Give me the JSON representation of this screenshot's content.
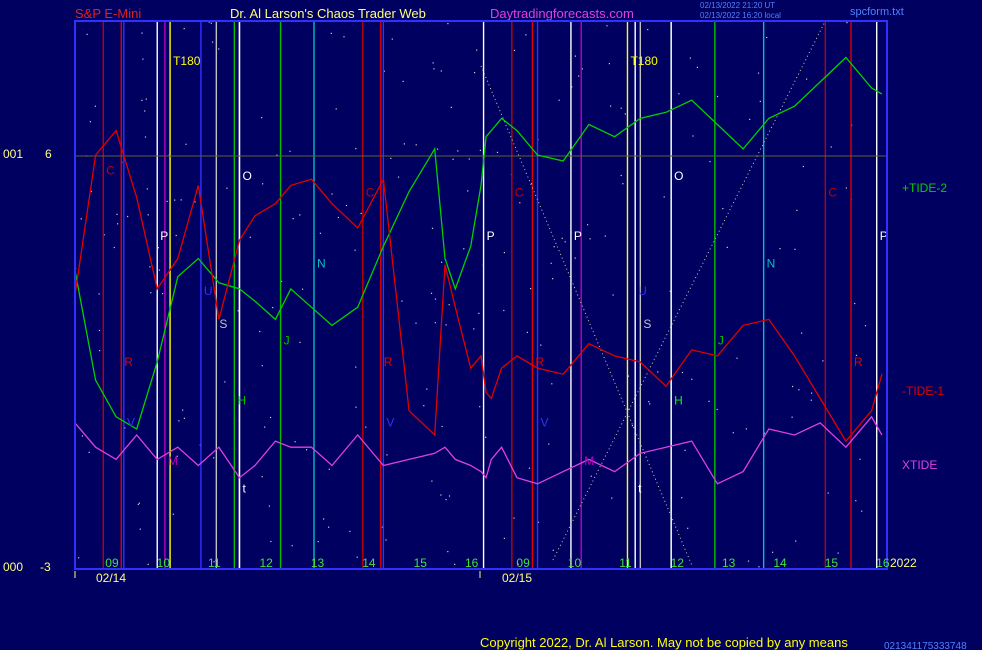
{
  "header": {
    "symbol": "S&P E-Mini",
    "title": "Dr. Al Larson's Chaos Trader Web",
    "site": "Daytradingforecasts.com",
    "stamp1": "02/13/2022 21:20 UT",
    "stamp2": "02/13/2022 16:20 local",
    "file": "spcform.txt"
  },
  "colors": {
    "background": "#000060",
    "frame": "#3030ff",
    "tide2": "#00d000",
    "tide1": "#e00000",
    "xtide": "#e040e0",
    "symbol": "#e02020",
    "title": "#ffff80",
    "site": "#e040e0",
    "copyright": "#ffff00",
    "date_labels": "#ffff80",
    "hour_labels": "#40e040"
  },
  "axis_left": {
    "top_code": "001",
    "top_value": "6",
    "bottom_code": "000",
    "bottom_value": "-3"
  },
  "series_labels": {
    "tide2": "+TIDE-2",
    "tide1": "-TIDE-1",
    "xtide": "XTIDE"
  },
  "year": "2022",
  "dates": [
    "02/14",
    "02/15"
  ],
  "hour_ticks": [
    "09",
    "10",
    "11",
    "12",
    "13",
    "14",
    "15",
    "16",
    "09",
    "10",
    "11",
    "12",
    "13",
    "14",
    "15",
    "16"
  ],
  "copyright": "Copyright 2022, Dr. Al Larson. May not be copied by any means",
  "bottom_right_id": "021341175333748",
  "chart_data": {
    "type": "line",
    "x_range": [
      "02/14 08:30",
      "02/15 16:15"
    ],
    "ylim": [
      -3,
      6
    ],
    "reference_line": 6,
    "series": [
      {
        "name": "+TIDE-2",
        "x_hours": [
          0,
          0.4,
          0.8,
          1.2,
          1.6,
          2.0,
          2.4,
          2.8,
          3.2,
          3.5,
          3.9,
          4.2,
          4.6,
          5.0,
          5.5,
          6.0,
          6.5,
          7.0,
          7.2,
          7.4,
          7.7,
          7.9,
          8.0,
          8.1,
          8.3,
          8.6,
          9.0,
          9.5,
          10.0,
          10.5,
          11.0,
          11.5,
          12.0,
          12.5,
          13.0,
          13.5,
          14.0,
          14.5,
          15.0,
          15.5,
          15.7
        ],
        "values": [
          1.9,
          0.1,
          -0.5,
          -0.7,
          0.4,
          1.8,
          2.1,
          1.7,
          1.6,
          1.4,
          1.1,
          1.6,
          1.3,
          1.0,
          1.3,
          2.3,
          3.2,
          3.9,
          2.1,
          1.6,
          2.3,
          3.3,
          4.1,
          4.2,
          4.4,
          4.2,
          3.8,
          3.7,
          4.3,
          4.1,
          4.4,
          4.5,
          4.7,
          4.3,
          3.9,
          4.4,
          4.6,
          5.0,
          5.4,
          4.9,
          4.8
        ]
      },
      {
        "name": "-TIDE-1",
        "x_hours": [
          0,
          0.4,
          0.8,
          1.2,
          1.6,
          2.0,
          2.4,
          2.8,
          3.2,
          3.5,
          3.9,
          4.2,
          4.6,
          5.0,
          5.5,
          6.0,
          6.5,
          7.0,
          7.2,
          7.4,
          7.7,
          7.9,
          8.0,
          8.1,
          8.3,
          8.6,
          9.0,
          9.5,
          10.0,
          10.5,
          11.0,
          11.5,
          12.0,
          12.5,
          13.0,
          13.5,
          14.0,
          14.5,
          15.0,
          15.5,
          15.7
        ],
        "values": [
          1.5,
          3.8,
          4.2,
          3.1,
          1.6,
          2.1,
          3.3,
          1.1,
          2.4,
          2.8,
          3.0,
          3.3,
          3.4,
          3.0,
          2.6,
          3.4,
          -0.4,
          -0.8,
          2.0,
          1.3,
          0.3,
          0.5,
          -0.1,
          -0.2,
          0.3,
          0.5,
          0.3,
          0.2,
          0.7,
          0.5,
          0.4,
          0.0,
          0.6,
          0.5,
          1.0,
          1.1,
          0.5,
          -0.2,
          -0.9,
          -0.4,
          0.2
        ]
      },
      {
        "name": "XTIDE",
        "x_hours": [
          0,
          0.4,
          0.8,
          1.2,
          1.6,
          2.0,
          2.4,
          2.8,
          3.2,
          3.5,
          3.9,
          4.2,
          4.6,
          5.0,
          5.5,
          6.0,
          6.5,
          7.0,
          7.2,
          7.4,
          7.7,
          7.9,
          8.0,
          8.1,
          8.3,
          8.6,
          9.0,
          9.5,
          10.0,
          10.5,
          11.0,
          11.5,
          12.0,
          12.5,
          13.0,
          13.5,
          14.0,
          14.5,
          15.0,
          15.5,
          15.7
        ],
        "values": [
          -0.6,
          -1.0,
          -1.2,
          -0.8,
          -1.2,
          -1.0,
          -1.3,
          -1.0,
          -1.5,
          -1.3,
          -0.9,
          -1.0,
          -1.0,
          -1.3,
          -0.8,
          -1.3,
          -1.2,
          -1.1,
          -1.0,
          -1.2,
          -1.3,
          -1.4,
          -1.5,
          -1.2,
          -1.0,
          -1.5,
          -1.6,
          -1.4,
          -1.2,
          -1.4,
          -1.1,
          -1.0,
          -0.9,
          -1.6,
          -1.4,
          -0.7,
          -0.8,
          -0.6,
          -1.0,
          -0.5,
          -0.8
        ]
      }
    ],
    "vlines": [
      {
        "x": 0.55,
        "color": "#c00000",
        "label": "C",
        "ly": 0.28
      },
      {
        "x": 0.9,
        "color": "#e00000",
        "label": "R",
        "ly": 0.63
      },
      {
        "x": 0.95,
        "color": "#3030ff",
        "label": "V",
        "ly": 0.74
      },
      {
        "x": 1.6,
        "color": "#ffffff",
        "label": "P",
        "ly": 0.4
      },
      {
        "x": 1.75,
        "color": "#c000c0",
        "label": "M",
        "ly": 0.81
      },
      {
        "x": 1.85,
        "color": "#ffff00",
        "label": "T180",
        "ly": 0.08
      },
      {
        "x": 2.45,
        "color": "#3030ff",
        "label": "U",
        "ly": 0.5
      },
      {
        "x": 2.75,
        "color": "#c0c0c0",
        "label": "S",
        "ly": 0.56
      },
      {
        "x": 3.1,
        "color": "#00c000",
        "label": "H",
        "ly": 0.7
      },
      {
        "x": 3.2,
        "color": "#ffffff",
        "label": "O",
        "ly": 0.29
      },
      {
        "x": 3.2,
        "color": "#ffffff",
        "label": "t",
        "ly": 0.86
      },
      {
        "x": 4.0,
        "color": "#00c000",
        "label": "J",
        "ly": 0.59
      },
      {
        "x": 4.65,
        "color": "#00c0c0",
        "label": "N",
        "ly": 0.45
      },
      {
        "x": 5.6,
        "color": "#c00000",
        "label": "C",
        "ly": 0.32
      },
      {
        "x": 5.95,
        "color": "#e00000",
        "label": "R",
        "ly": 0.63
      },
      {
        "x": 6.0,
        "color": "#3030ff",
        "label": "V",
        "ly": 0.74
      },
      {
        "x": 7.95,
        "color": "#ffffff",
        "label": "P",
        "ly": 0.4
      },
      {
        "x": 8.5,
        "color": "#c00000",
        "label": "C",
        "ly": 0.32
      },
      {
        "x": 8.9,
        "color": "#e00000",
        "label": "R",
        "ly": 0.63
      },
      {
        "x": 9.0,
        "color": "#3030ff",
        "label": "V",
        "ly": 0.74
      },
      {
        "x": 9.65,
        "color": "#ffffff",
        "label": "P",
        "ly": 0.4
      },
      {
        "x": 9.85,
        "color": "#c000c0",
        "label": "M",
        "ly": 0.81
      },
      {
        "x": 10.75,
        "color": "#ffff00",
        "label": "T180",
        "ly": 0.08
      },
      {
        "x": 10.9,
        "color": "#3030ff",
        "label": "U",
        "ly": 0.5
      },
      {
        "x": 11.0,
        "color": "#c0c0c0",
        "label": "S",
        "ly": 0.56
      },
      {
        "x": 11.6,
        "color": "#00ff00",
        "label": "H",
        "ly": 0.7
      },
      {
        "x": 11.6,
        "color": "#ffffff",
        "label": "O",
        "ly": 0.29
      },
      {
        "x": 10.9,
        "color": "#ffffff",
        "label": "t",
        "ly": 0.86
      },
      {
        "x": 12.45,
        "color": "#00c000",
        "label": "J",
        "ly": 0.59
      },
      {
        "x": 13.4,
        "color": "#00c0c0",
        "label": "N",
        "ly": 0.45
      },
      {
        "x": 14.6,
        "color": "#c00000",
        "label": "C",
        "ly": 0.32
      },
      {
        "x": 15.1,
        "color": "#e00000",
        "label": "R",
        "ly": 0.63
      },
      {
        "x": 15.6,
        "color": "#ffffff",
        "label": "P",
        "ly": 0.4
      }
    ]
  }
}
